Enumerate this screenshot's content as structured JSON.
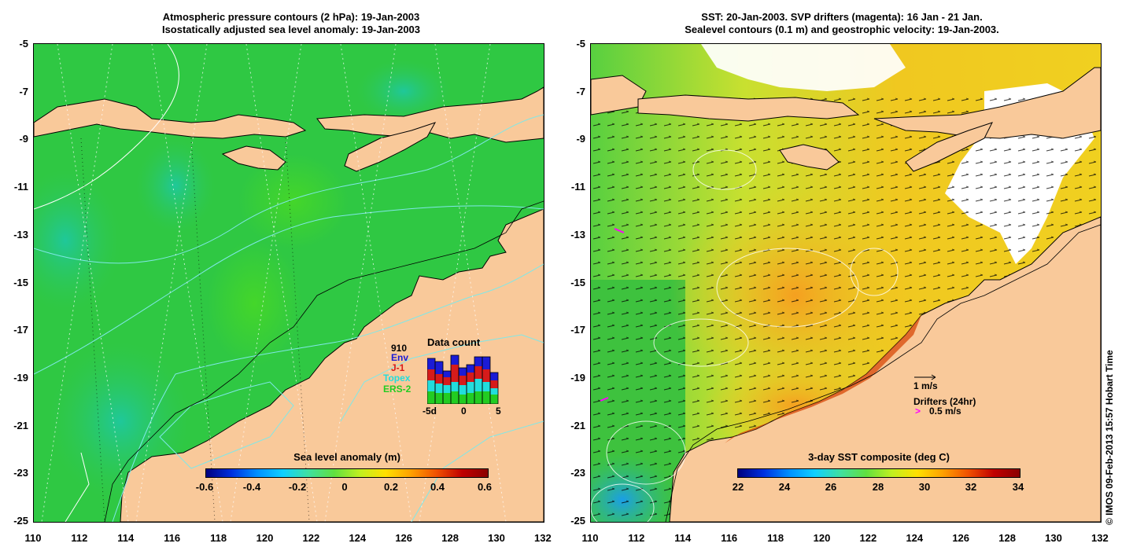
{
  "left": {
    "title_line1": "Atmospheric pressure contours (2 hPa): 19-Jan-2003",
    "title_line2": "Isostatically adjusted sea level anomaly: 19-Jan-2003",
    "colorbar_title": "Sea level anomaly (m)",
    "colorbar_ticks": [
      "-0.6",
      "-0.4",
      "-0.2",
      "0",
      "0.2",
      "0.4",
      "0.6"
    ],
    "data_count": {
      "title": "Data count",
      "total": "910",
      "labels": [
        {
          "text": "Env",
          "color": "#1b1bd6"
        },
        {
          "text": "J-1",
          "color": "#d61b1b"
        },
        {
          "text": "Topex",
          "color": "#22dddd"
        },
        {
          "text": "ERS-2",
          "color": "#22cc22"
        }
      ],
      "x_ticks": [
        "-5d",
        "0",
        "5"
      ]
    }
  },
  "right": {
    "title_line1": "SST: 20-Jan-2003. SVP drifters (magenta): 16 Jan - 21 Jan.",
    "title_line2": "Sealevel contours (0.1 m) and geostrophic velocity: 19-Jan-2003.",
    "colorbar_title": "3-day SST composite (deg C)",
    "colorbar_ticks": [
      "22",
      "24",
      "26",
      "28",
      "30",
      "32",
      "34"
    ],
    "legend_velocity": "1 m/s",
    "legend_drifters": "Drifters (24hr)",
    "legend_drifter_speed": "0.5 m/s"
  },
  "axes": {
    "y_ticks": [
      "-5",
      "-7",
      "-9",
      "-11",
      "-13",
      "-15",
      "-17",
      "-19",
      "-21",
      "-23",
      "-25"
    ],
    "x_ticks": [
      "110",
      "112",
      "114",
      "116",
      "118",
      "120",
      "122",
      "124",
      "126",
      "128",
      "130",
      "132"
    ]
  },
  "copyright": "© IMOS 09-Feb-2013 15:57 Hobart Time",
  "colors": {
    "land": "#f9c99a",
    "sea_green": "#35c83c",
    "sst_warm": "#f2b21e",
    "cloud": "#ffffff"
  }
}
